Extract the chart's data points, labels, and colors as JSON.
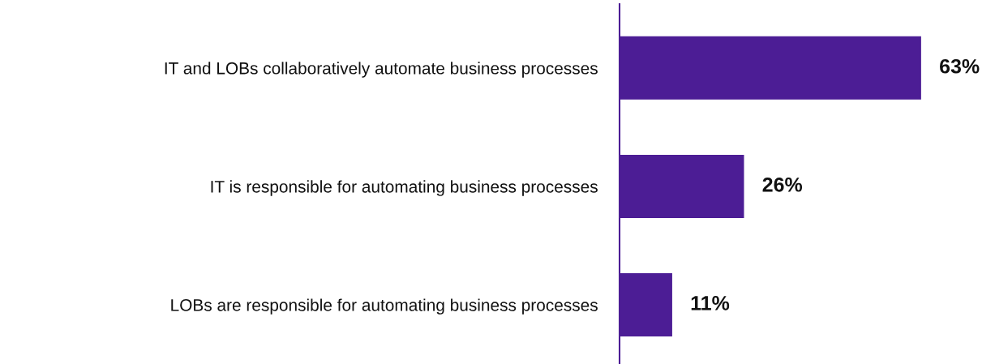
{
  "chart_data": {
    "type": "bar",
    "orientation": "horizontal",
    "categories": [
      "IT and LOBs collaboratively automate business processes",
      "IT is responsible for automating business processes",
      "LOBs are responsible for automating business processes"
    ],
    "values": [
      63,
      26,
      11
    ],
    "color": "#4c1d95",
    "data_labels": true,
    "value_labels": [
      "63%",
      "26%",
      "11%"
    ],
    "grid": false,
    "legend": false
  }
}
